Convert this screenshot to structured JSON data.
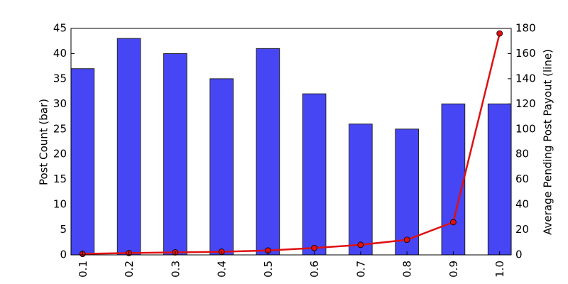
{
  "chart_data": {
    "type": "bar",
    "categories": [
      "0.1",
      "0.2",
      "0.3",
      "0.4",
      "0.5",
      "0.6",
      "0.7",
      "0.8",
      "0.9",
      "1.0"
    ],
    "series": [
      {
        "type": "bar",
        "color": "#4646f5",
        "values": [
          37,
          43,
          40,
          35,
          41,
          32,
          26,
          25,
          30,
          30
        ]
      },
      {
        "type": "line",
        "axis": "y2",
        "color": "#e01010",
        "values": [
          0.8,
          1.5,
          2,
          2.5,
          3.5,
          5.5,
          8,
          12,
          26,
          176
        ]
      }
    ],
    "ylabel": "Post Count (bar)",
    "y2label": "Average Pending Post Payout (line)",
    "ylim": [
      0,
      45
    ],
    "yticks": [
      0,
      5,
      10,
      15,
      20,
      25,
      30,
      35,
      40,
      45
    ],
    "y2lim": [
      0,
      180
    ],
    "y2ticks": [
      0,
      20,
      40,
      60,
      80,
      100,
      120,
      140,
      160,
      180
    ]
  }
}
